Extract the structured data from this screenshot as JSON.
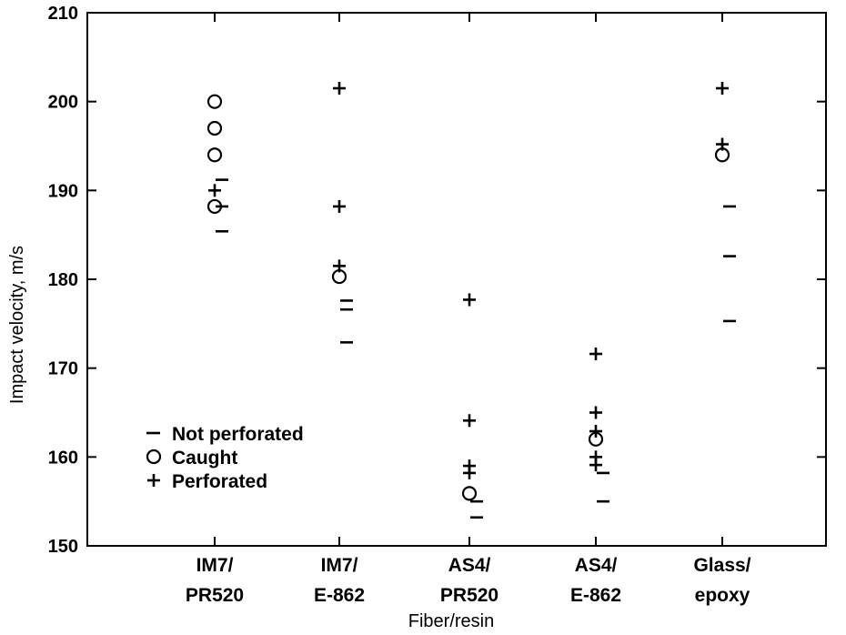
{
  "chart_data": {
    "type": "scatter",
    "xlabel": "Fiber/resin",
    "ylabel": "Impact velocity, m/s",
    "ylim": [
      150,
      210
    ],
    "yticks": [
      150,
      160,
      170,
      180,
      190,
      200,
      210
    ],
    "categories": [
      {
        "line1": "IM7/",
        "line2": "PR520"
      },
      {
        "line1": "IM7/",
        "line2": "E-862"
      },
      {
        "line1": "AS4/",
        "line2": "PR520"
      },
      {
        "line1": "AS4/",
        "line2": "E-862"
      },
      {
        "line1": "Glass/",
        "line2": "epoxy"
      }
    ],
    "grid": false,
    "legend_position": "lower-left",
    "series": [
      {
        "name": "Not perforated",
        "marker": "dash",
        "points": [
          {
            "x": 0,
            "y": 191.2
          },
          {
            "x": 0,
            "y": 188.2
          },
          {
            "x": 0,
            "y": 185.4
          },
          {
            "x": 1,
            "y": 177.6
          },
          {
            "x": 1,
            "y": 176.6
          },
          {
            "x": 1,
            "y": 172.9
          },
          {
            "x": 2,
            "y": 155.0
          },
          {
            "x": 2,
            "y": 153.2
          },
          {
            "x": 3,
            "y": 158.2
          },
          {
            "x": 3,
            "y": 155.0
          },
          {
            "x": 4,
            "y": 188.2
          },
          {
            "x": 4,
            "y": 182.6
          },
          {
            "x": 4,
            "y": 175.3
          }
        ]
      },
      {
        "name": "Caught",
        "marker": "circle",
        "points": [
          {
            "x": 0,
            "y": 200.0
          },
          {
            "x": 0,
            "y": 197.0
          },
          {
            "x": 0,
            "y": 194.0
          },
          {
            "x": 0,
            "y": 188.2
          },
          {
            "x": 1,
            "y": 180.3
          },
          {
            "x": 2,
            "y": 155.9
          },
          {
            "x": 3,
            "y": 162.0
          },
          {
            "x": 4,
            "y": 194.0
          }
        ]
      },
      {
        "name": "Perforated",
        "marker": "plus",
        "points": [
          {
            "x": 0,
            "y": 190.0
          },
          {
            "x": 1,
            "y": 201.5
          },
          {
            "x": 1,
            "y": 188.2
          },
          {
            "x": 1,
            "y": 181.5
          },
          {
            "x": 2,
            "y": 177.7
          },
          {
            "x": 2,
            "y": 164.1
          },
          {
            "x": 2,
            "y": 159.0
          },
          {
            "x": 2,
            "y": 158.2
          },
          {
            "x": 3,
            "y": 171.6
          },
          {
            "x": 3,
            "y": 165.0
          },
          {
            "x": 3,
            "y": 162.9
          },
          {
            "x": 3,
            "y": 160.0
          },
          {
            "x": 3,
            "y": 159.1
          },
          {
            "x": 4,
            "y": 201.5
          },
          {
            "x": 4,
            "y": 195.2
          }
        ]
      }
    ]
  }
}
